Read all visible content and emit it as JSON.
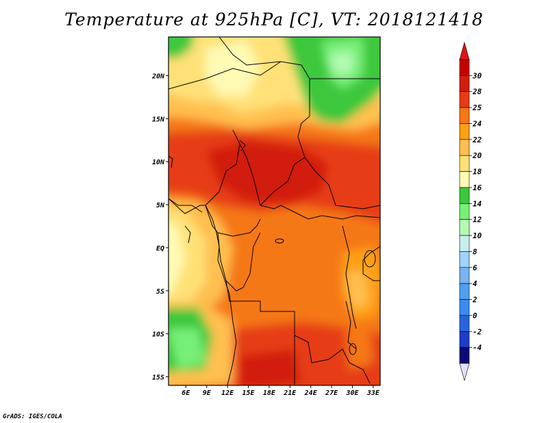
{
  "title": "Temperature at 925hPa [C], VT: 2018121418",
  "footer": "GrADS: IGES/COLA",
  "map": {
    "lon_range": [
      3.5,
      34
    ],
    "lat_range": [
      -16,
      24.5
    ],
    "x_ticks": [
      {
        "value": 6,
        "label": "6E"
      },
      {
        "value": 9,
        "label": "9E"
      },
      {
        "value": 12,
        "label": "12E"
      },
      {
        "value": 15,
        "label": "15E"
      },
      {
        "value": 18,
        "label": "18E"
      },
      {
        "value": 21,
        "label": "21E"
      },
      {
        "value": 24,
        "label": "24E"
      },
      {
        "value": 27,
        "label": "27E"
      },
      {
        "value": 30,
        "label": "30E"
      },
      {
        "value": 33,
        "label": "33E"
      }
    ],
    "y_ticks": [
      {
        "value": 20,
        "label": "20N"
      },
      {
        "value": 15,
        "label": "15N"
      },
      {
        "value": 10,
        "label": "10N"
      },
      {
        "value": 5,
        "label": "5N"
      },
      {
        "value": 0,
        "label": "EQ"
      },
      {
        "value": -5,
        "label": "5S"
      },
      {
        "value": -10,
        "label": "10S"
      },
      {
        "value": -15,
        "label": "15S"
      }
    ]
  },
  "colorbar": {
    "levels": [
      "-4",
      "-2",
      "0",
      "2",
      "4",
      "6",
      "8",
      "10",
      "12",
      "14",
      "16",
      "18",
      "20",
      "22",
      "24",
      "25",
      "28",
      "30"
    ],
    "colors": [
      "#0a0a78",
      "#1e3cc8",
      "#2864dc",
      "#3c8cf0",
      "#50a0f0",
      "#78b4f0",
      "#a0d2fa",
      "#c8eef0",
      "#b4fab4",
      "#78f078",
      "#3cc83c",
      "#fffab4",
      "#ffe178",
      "#ffc050",
      "#ffa014",
      "#f57814",
      "#e63c14",
      "#d21e0a",
      "#c80000"
    ],
    "under_color": "#e1e1ff",
    "over_color": "#dc1414"
  }
}
